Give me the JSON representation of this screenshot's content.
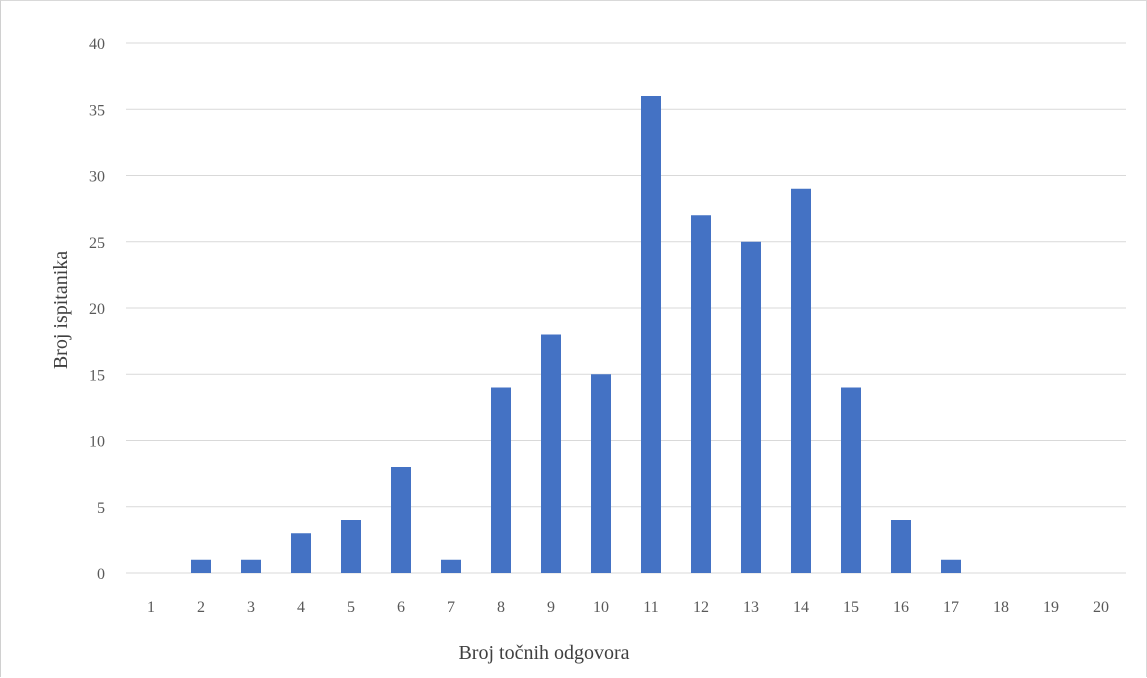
{
  "chart_data": {
    "type": "bar",
    "title": "",
    "xlabel": "Broj točnih odgovora",
    "ylabel": "Broj ispitanika",
    "categories": [
      "1",
      "2",
      "3",
      "4",
      "5",
      "6",
      "7",
      "8",
      "9",
      "10",
      "11",
      "12",
      "13",
      "14",
      "15",
      "16",
      "17",
      "18",
      "19",
      "20"
    ],
    "values": [
      0,
      1,
      1,
      3,
      4,
      8,
      1,
      14,
      18,
      15,
      36,
      27,
      25,
      29,
      14,
      4,
      1,
      0,
      0,
      0
    ],
    "ylim": [
      0,
      40
    ],
    "yticks": [
      0,
      5,
      10,
      15,
      20,
      25,
      30,
      35,
      40
    ],
    "grid": true,
    "legend": "none",
    "bar_color": "#4472c4"
  }
}
